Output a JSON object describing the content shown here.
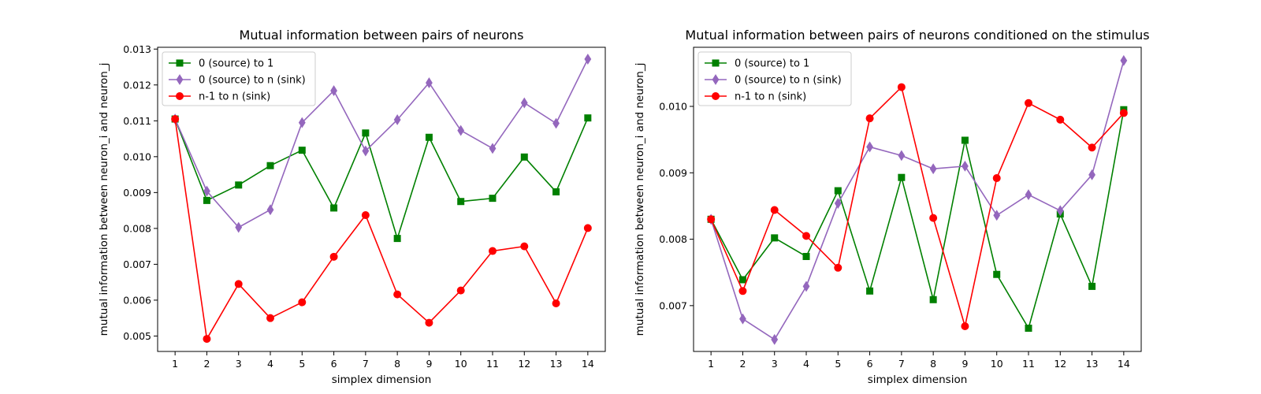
{
  "chart_data": [
    {
      "type": "line",
      "title": "Mutual information between pairs of neurons",
      "xlabel": "simplex dimension",
      "ylabel": "mutual information between neuron_i and neuron_j",
      "x": [
        1,
        2,
        3,
        4,
        5,
        6,
        7,
        8,
        9,
        10,
        11,
        12,
        13,
        14
      ],
      "x_ticks": [
        "1",
        "2",
        "3",
        "4",
        "5",
        "6",
        "7",
        "8",
        "9",
        "10",
        "11",
        "12",
        "13",
        "14"
      ],
      "xlim": [
        0.45,
        14.55
      ],
      "ylim": [
        0.00457,
        0.01305
      ],
      "y_ticks": [
        "0.005",
        "0.006",
        "0.007",
        "0.008",
        "0.009",
        "0.010",
        "0.011",
        "0.012",
        "0.013"
      ],
      "y_tick_values": [
        0.005,
        0.006,
        0.007,
        0.008,
        0.009,
        0.01,
        0.011,
        0.012,
        0.013
      ],
      "grid": false,
      "legend_position": "upper-left",
      "series": [
        {
          "name": "0 (source) to 1",
          "color": "#008000",
          "marker": "square",
          "values": [
            0.01105,
            0.00878,
            0.00921,
            0.00975,
            0.01018,
            0.00857,
            0.01066,
            0.00772,
            0.01054,
            0.00875,
            0.00884,
            0.00999,
            0.00902,
            0.01108
          ]
        },
        {
          "name": "0 (source) to n (sink)",
          "color": "#9467bd",
          "marker": "thin_diamond",
          "values": [
            0.01105,
            0.00904,
            0.00803,
            0.00852,
            0.01095,
            0.01184,
            0.01016,
            0.01103,
            0.01206,
            0.01073,
            0.01023,
            0.0115,
            0.01093,
            0.01272
          ]
        },
        {
          "name": "n-1 to n (sink)",
          "color": "#ff0000",
          "marker": "circle",
          "values": [
            0.01105,
            0.00492,
            0.00645,
            0.0055,
            0.00594,
            0.00721,
            0.00837,
            0.00616,
            0.00537,
            0.00627,
            0.00737,
            0.0075,
            0.00591,
            0.00801
          ]
        }
      ]
    },
    {
      "type": "line",
      "title": "Mutual information between pairs of neurons conditioned on the stimulus",
      "xlabel": "simplex dimension",
      "ylabel": "mutual information between neuron_i and neuron_j",
      "x": [
        1,
        2,
        3,
        4,
        5,
        6,
        7,
        8,
        9,
        10,
        11,
        12,
        13,
        14
      ],
      "x_ticks": [
        "1",
        "2",
        "3",
        "4",
        "5",
        "6",
        "7",
        "8",
        "9",
        "10",
        "11",
        "12",
        "13",
        "14"
      ],
      "xlim": [
        0.45,
        14.55
      ],
      "ylim": [
        0.00631,
        0.01089
      ],
      "y_ticks": [
        "0.007",
        "0.008",
        "0.009",
        "0.010"
      ],
      "y_tick_values": [
        0.007,
        0.008,
        0.009,
        0.01
      ],
      "grid": false,
      "legend_position": "upper-left",
      "series": [
        {
          "name": "0 (source) to 1",
          "color": "#008000",
          "marker": "square",
          "values": [
            0.0083,
            0.00739,
            0.00802,
            0.00774,
            0.00873,
            0.00722,
            0.00893,
            0.00709,
            0.00949,
            0.00747,
            0.00666,
            0.00838,
            0.00729,
            0.00995
          ]
        },
        {
          "name": "0 (source) to n (sink)",
          "color": "#9467bd",
          "marker": "thin_diamond",
          "values": [
            0.0083,
            0.0068,
            0.00649,
            0.00729,
            0.00854,
            0.00939,
            0.00926,
            0.00906,
            0.0091,
            0.00836,
            0.00867,
            0.00843,
            0.00897,
            0.01069
          ]
        },
        {
          "name": "n-1 to n (sink)",
          "color": "#ff0000",
          "marker": "circle",
          "values": [
            0.0083,
            0.00722,
            0.00844,
            0.00805,
            0.00757,
            0.00982,
            0.01029,
            0.00832,
            0.00669,
            0.00892,
            0.01005,
            0.0098,
            0.00938,
            0.0099
          ]
        }
      ]
    }
  ]
}
